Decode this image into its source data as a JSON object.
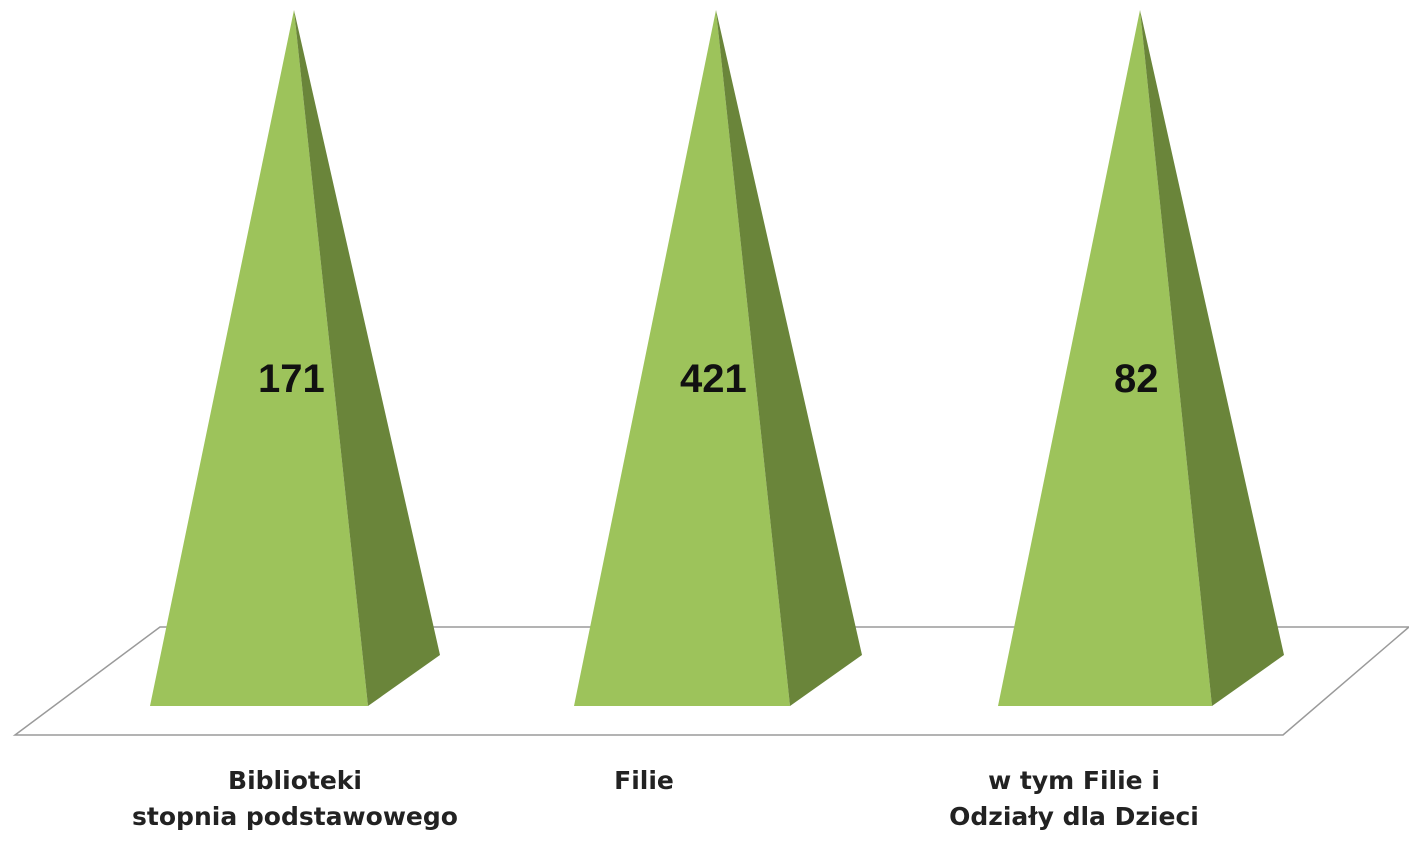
{
  "chart_data": {
    "type": "bar",
    "style": "3d-pyramid",
    "categories": [
      [
        "Biblioteki",
        "stopnia podstawowego"
      ],
      [
        "Filie"
      ],
      [
        "w tym Filie i",
        "Odziały dla Dzieci"
      ]
    ],
    "values": [
      171,
      421,
      82
    ],
    "data_labels": [
      "171",
      "421",
      "82"
    ],
    "title": "",
    "xlabel": "",
    "ylabel": "",
    "grid": false,
    "legend": "none",
    "colors": {
      "face_light": "#9dc35b",
      "face_dark": "#6a853a",
      "floor_edge": "#9a9a9a"
    }
  }
}
